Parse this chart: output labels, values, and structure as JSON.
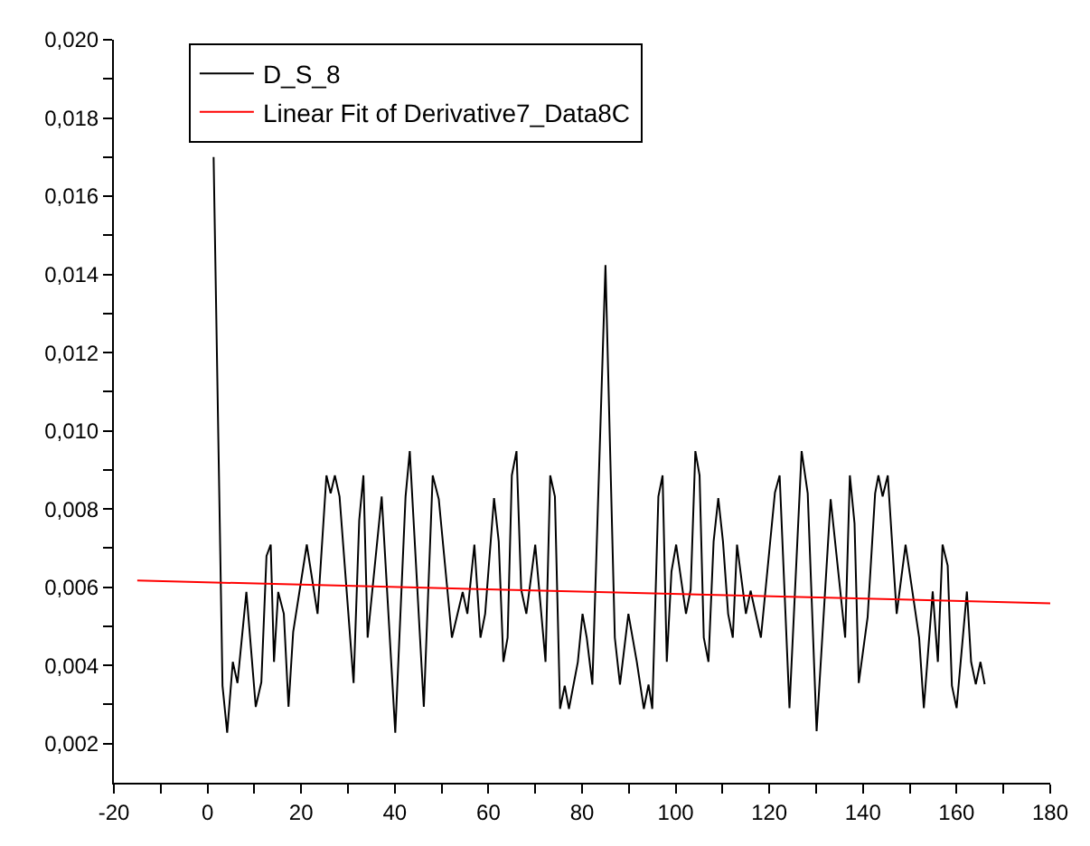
{
  "chart_data": {
    "type": "line",
    "series": [
      {
        "name": "D_S_8",
        "color": "#000000",
        "x": [
          1.3,
          3.2,
          4.2,
          5.4,
          6.4,
          8.3,
          10.3,
          11.5,
          12.6,
          13.5,
          14.2,
          15.1,
          16.3,
          17.3,
          18.3,
          21.2,
          23.5,
          25.4,
          26.3,
          27.2,
          28.2,
          31.2,
          32.4,
          33.3,
          34.2,
          37.2,
          40.1,
          42.3,
          43.2,
          46.2,
          48.1,
          49.4,
          52.2,
          54.5,
          55.5,
          57.0,
          58.3,
          59.3,
          61.2,
          62.2,
          63.2,
          64.1,
          65.0,
          66.0,
          67.0,
          68.1,
          70.0,
          72.2,
          73.2,
          74.2,
          75.3,
          76.3,
          77.2,
          79.1,
          80.1,
          81.0,
          82.2,
          85.0,
          87.0,
          88.1,
          89.9,
          91.7,
          93.2,
          94.2,
          95.0,
          96.3,
          97.2,
          98.1,
          99.1,
          100.1,
          102.2,
          103.2,
          104.2,
          105.1,
          106.0,
          107.0,
          108.1,
          109.1,
          110.1,
          111.2,
          112.2,
          113.1,
          115.0,
          116.0,
          118.2,
          121.2,
          122.2,
          124.3,
          126.9,
          128.2,
          130.1,
          133.1,
          136.2,
          137.2,
          138.2,
          139.1,
          141.0,
          142.6,
          143.3,
          144.2,
          145.3,
          147.2,
          149.1,
          152.0,
          153.0,
          154.9,
          156.0,
          157.0,
          158.1,
          159.0,
          160.0,
          162.2,
          163.1,
          164.1,
          165.1,
          166.0
        ],
        "values": [
          0.017,
          0.00348,
          0.00228,
          0.00409,
          0.00355,
          0.00588,
          0.00294,
          0.00357,
          0.0068,
          0.00709,
          0.00409,
          0.00588,
          0.00532,
          0.00294,
          0.00486,
          0.00709,
          0.00532,
          0.00886,
          0.0084,
          0.00886,
          0.00832,
          0.00355,
          0.00771,
          0.00886,
          0.00471,
          0.00832,
          0.00228,
          0.00832,
          0.00948,
          0.00294,
          0.00886,
          0.00825,
          0.00471,
          0.00588,
          0.00532,
          0.00709,
          0.00471,
          0.00532,
          0.00828,
          0.00717,
          0.00409,
          0.00471,
          0.00886,
          0.00948,
          0.00594,
          0.00532,
          0.00709,
          0.00409,
          0.00886,
          0.00832,
          0.00289,
          0.00348,
          0.00289,
          0.00409,
          0.00532,
          0.00471,
          0.00351,
          0.01424,
          0.00471,
          0.00351,
          0.00532,
          0.00409,
          0.00289,
          0.00351,
          0.00289,
          0.00832,
          0.00886,
          0.00409,
          0.0064,
          0.00709,
          0.00532,
          0.00594,
          0.00948,
          0.00886,
          0.00471,
          0.00409,
          0.00717,
          0.00828,
          0.00717,
          0.00532,
          0.00471,
          0.00709,
          0.00532,
          0.00591,
          0.00471,
          0.00842,
          0.00886,
          0.00291,
          0.00948,
          0.0084,
          0.00232,
          0.00825,
          0.00471,
          0.00886,
          0.00763,
          0.00355,
          0.00524,
          0.0084,
          0.00886,
          0.00832,
          0.00886,
          0.00532,
          0.00709,
          0.00471,
          0.00291,
          0.00589,
          0.00409,
          0.00709,
          0.00655,
          0.00348,
          0.00291,
          0.00589,
          0.00409,
          0.00352,
          0.00409,
          0.00352
        ]
      },
      {
        "name": "Linear Fit of Derivative7_Data8C",
        "color": "#ff0000",
        "x": [
          -15,
          180
        ],
        "values": [
          0.00617,
          0.00559
        ]
      }
    ],
    "xlim": [
      -20,
      180
    ],
    "xticks": [
      {
        "value": -20,
        "label": "-20"
      },
      {
        "value": -10,
        "label": null
      },
      0,
      {
        "value": 10,
        "label": null
      },
      20,
      {
        "value": 30,
        "label": null
      },
      40,
      {
        "value": 50,
        "label": null
      },
      60,
      {
        "value": 70,
        "label": null
      },
      80,
      {
        "value": 90,
        "label": null
      },
      100,
      {
        "value": 110,
        "label": null
      },
      120,
      {
        "value": 130,
        "label": null
      },
      140,
      {
        "value": 150,
        "label": null
      },
      160,
      {
        "value": 170,
        "label": null
      },
      180
    ],
    "ylim": [
      0.001,
      0.02
    ],
    "yticks": [
      {
        "value": 0.002,
        "label": "0,002"
      },
      {
        "value": 0.003,
        "label": null
      },
      {
        "value": 0.004,
        "label": "0,004"
      },
      {
        "value": 0.005,
        "label": null
      },
      {
        "value": 0.006,
        "label": "0,006"
      },
      {
        "value": 0.007,
        "label": null
      },
      {
        "value": 0.008,
        "label": "0,008"
      },
      {
        "value": 0.009,
        "label": null
      },
      {
        "value": 0.01,
        "label": "0,010"
      },
      {
        "value": 0.011,
        "label": null
      },
      {
        "value": 0.012,
        "label": "0,012"
      },
      {
        "value": 0.013,
        "label": null
      },
      {
        "value": 0.014,
        "label": "0,014"
      },
      {
        "value": 0.015,
        "label": null
      },
      {
        "value": 0.016,
        "label": "0,016"
      },
      {
        "value": 0.017,
        "label": null
      },
      {
        "value": 0.018,
        "label": "0,018"
      },
      {
        "value": 0.019,
        "label": null
      },
      {
        "value": 0.02,
        "label": "0,020"
      }
    ],
    "legend": "top left",
    "marker": "none",
    "line_style": "solid"
  }
}
